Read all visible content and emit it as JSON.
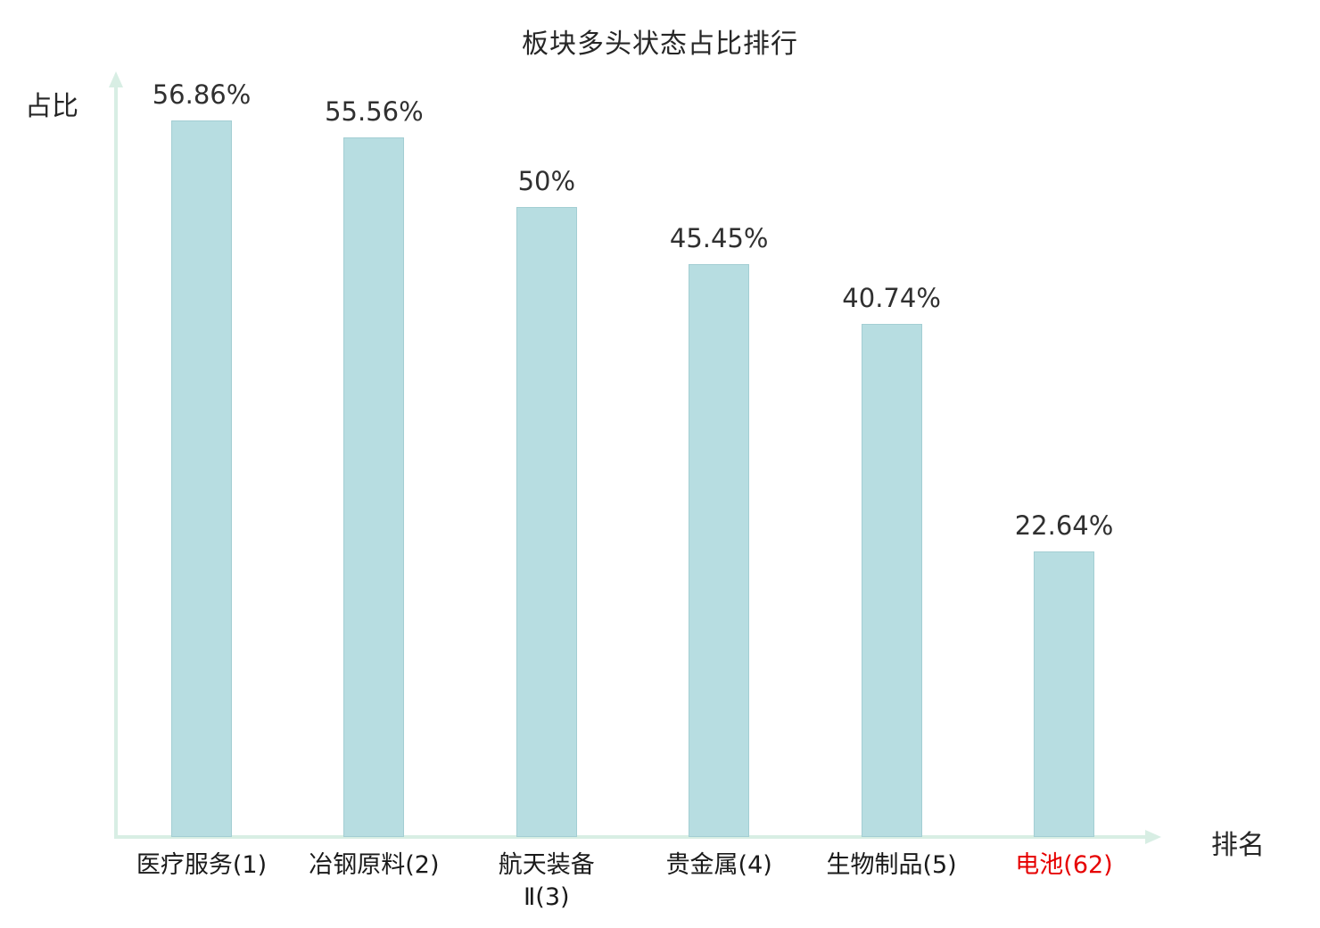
{
  "title": "板块多头状态占比排行",
  "axes": {
    "y_label": "占比",
    "x_label": "排名"
  },
  "colors": {
    "bar_fill": "#b7dde1",
    "bar_border": "#a3ced3",
    "axis": "#d8eee4",
    "text": "#262626",
    "highlight": "#e60000"
  },
  "chart_data": {
    "type": "bar",
    "title": "板块多头状态占比排行",
    "xlabel": "排名",
    "ylabel": "占比",
    "categories": [
      "医疗服务(1)",
      "冶钢原料(2)",
      "航天装备\nⅡ(3)",
      "贵金属(4)",
      "生物制品(5)",
      "电池(62)"
    ],
    "values": [
      56.86,
      55.56,
      50,
      45.45,
      40.74,
      22.64
    ],
    "value_labels": [
      "56.86%",
      "55.56%",
      "50%",
      "45.45%",
      "40.74%",
      "22.64%"
    ],
    "highlighted_category_index": 5,
    "ylim": [
      0,
      60
    ],
    "grid": false,
    "legend": "none"
  }
}
